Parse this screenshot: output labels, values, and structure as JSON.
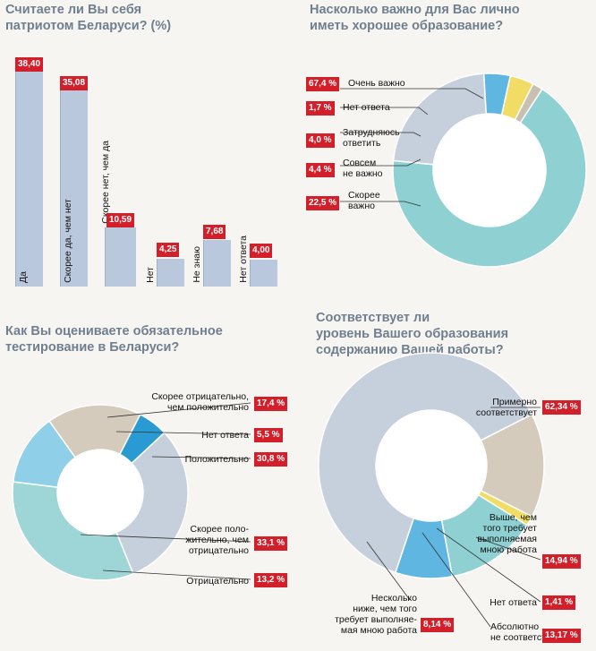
{
  "chart_data": [
    {
      "type": "bar",
      "title": "Считаете ли Вы себя патриотом Беларуси? (%)",
      "categories": [
        "Да",
        "Скорее да, чем нет",
        "Скорее нет, чем да",
        "Нет",
        "Не знаю",
        "Нет ответа"
      ],
      "values": [
        38.4,
        35.08,
        10.59,
        4.25,
        7.68,
        4.0
      ],
      "value_labels": [
        "38,40",
        "35,08",
        "10,59",
        "4,25",
        "7,68",
        "4,00"
      ],
      "ylim": [
        0,
        40
      ]
    },
    {
      "type": "pie",
      "title": "Насколько важно для Вас лично иметь хорошее образование?",
      "slices": [
        {
          "label": "Очень важно",
          "value": 67.4,
          "value_label": "67,4 %",
          "color": "#8fd0d2"
        },
        {
          "label": "Нет ответа",
          "value": 1.7,
          "value_label": "1,7 %",
          "color": "#c9c0b2"
        },
        {
          "label": "Затрудняюсь ответить",
          "value": 4.0,
          "value_label": "4,0 %",
          "color": "#f1dd65"
        },
        {
          "label": "Совсем не важно",
          "value": 4.4,
          "value_label": "4,4 %",
          "color": "#5fb6e0"
        },
        {
          "label": "Скорее важно",
          "value": 22.5,
          "value_label": "22,5 %",
          "color": "#c6cfdc"
        }
      ]
    },
    {
      "type": "pie",
      "title": "Как Вы оцениваете обязательное тестирование в Беларуси?",
      "slices": [
        {
          "label": "Скорее отрицательно, чем положительно",
          "value": 17.4,
          "value_label": "17,4 %",
          "color": "#d4cbbd"
        },
        {
          "label": "Нет ответа",
          "value": 5.5,
          "value_label": "5,5 %",
          "color": "#2a9ad3"
        },
        {
          "label": "Положительно",
          "value": 30.8,
          "value_label": "30,8 %",
          "color": "#c6cfdc"
        },
        {
          "label": "Отрицательно",
          "value": 13.2,
          "value_label": "13,2 %",
          "color": "#8fd0e8"
        },
        {
          "label": "Скорее положительно, чем отрицательно",
          "value": 33.1,
          "value_label": "33,1 %",
          "color": "#9ed6d8"
        }
      ]
    },
    {
      "type": "pie",
      "title": "Соответствует ли уровень Вашего образования содержанию Вашей работы?",
      "slices": [
        {
          "label": "Выше, чем того требует выполняемая мною работа",
          "value": 14.94,
          "value_label": "14,94 %",
          "color": "#d4cbbd"
        },
        {
          "label": "Нет ответа",
          "value": 1.41,
          "value_label": "1,41 %",
          "color": "#f1dd65"
        },
        {
          "label": "Абсолютно не соответствует",
          "value": 13.17,
          "value_label": "13,17 %",
          "color": "#8fd0d2"
        },
        {
          "label": "Несколько ниже, чем того требует выполняемая мною работа",
          "value": 8.14,
          "value_label": "8,14 %",
          "color": "#5fb6e0"
        },
        {
          "label": "Примерно соответствует",
          "value": 62.34,
          "value_label": "62,34 %",
          "color": "#c6cfdc"
        }
      ]
    }
  ],
  "titles": {
    "c1a": "Считаете ли Вы себя",
    "c1b": "патриотом Беларуси? (%)",
    "c2a": "Насколько важно для Вас лично",
    "c2b": "иметь хорошее образование?",
    "c3a": "Как Вы оцениваете обязательное",
    "c3b": "тестирование в Беларуси?",
    "c4a": "Соответствует ли",
    "c4b": "уровень Вашего образования",
    "c4c": "содержанию Вашей работы?"
  },
  "labels2": {
    "l0": "Очень важно",
    "l1": "Нет ответа",
    "l2a": "Затрудняюсь",
    "l2b": "ответить",
    "l3a": "Совсем",
    "l3b": "не важно",
    "l4a": "Скорее",
    "l4b": "важно"
  },
  "labels3": {
    "l0a": "Скорее отрицательно,",
    "l0b": "чем положительно",
    "l1": "Нет ответа",
    "l2": "Положительно",
    "l4a": "Скорее поло-",
    "l4b": "жительно, чем",
    "l4c": "отрицательно",
    "l3": "Отрицательно"
  },
  "labels4": {
    "l4a": "Примерно",
    "l4b": "соответствует",
    "l0a": "Выше, чем",
    "l0b": "того требует",
    "l0c": "выполняемая",
    "l0d": "мною работа",
    "l1": "Нет ответа",
    "l3a": "Несколько",
    "l3b": "ниже, чем того",
    "l3c": "требует выполняе-",
    "l3d": "мая мною работа",
    "l2a": "Абсолютно",
    "l2b": "не соответствует"
  }
}
